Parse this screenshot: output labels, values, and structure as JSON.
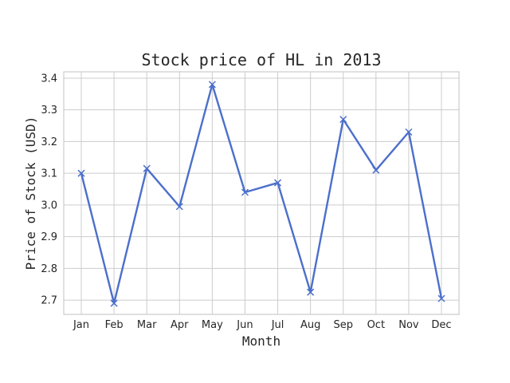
{
  "chart_data": {
    "type": "line",
    "title": "Stock price of HL in 2013",
    "xlabel": "Month",
    "ylabel": "Price of Stock (USD)",
    "categories": [
      "Jan",
      "Feb",
      "Mar",
      "Apr",
      "May",
      "Jun",
      "Jul",
      "Aug",
      "Sep",
      "Oct",
      "Nov",
      "Dec"
    ],
    "series": [
      {
        "values": [
          3.1,
          2.69,
          3.115,
          2.995,
          3.38,
          3.04,
          3.07,
          2.725,
          3.27,
          3.11,
          3.23,
          2.705
        ],
        "color": "#4c6fcb",
        "marker": "x"
      }
    ],
    "ylim": [
      2.655,
      3.42
    ],
    "yticks": [
      "2.7",
      "2.8",
      "2.9",
      "3.0",
      "3.1",
      "3.2",
      "3.3",
      "3.4"
    ],
    "grid": true,
    "legend": "none"
  }
}
